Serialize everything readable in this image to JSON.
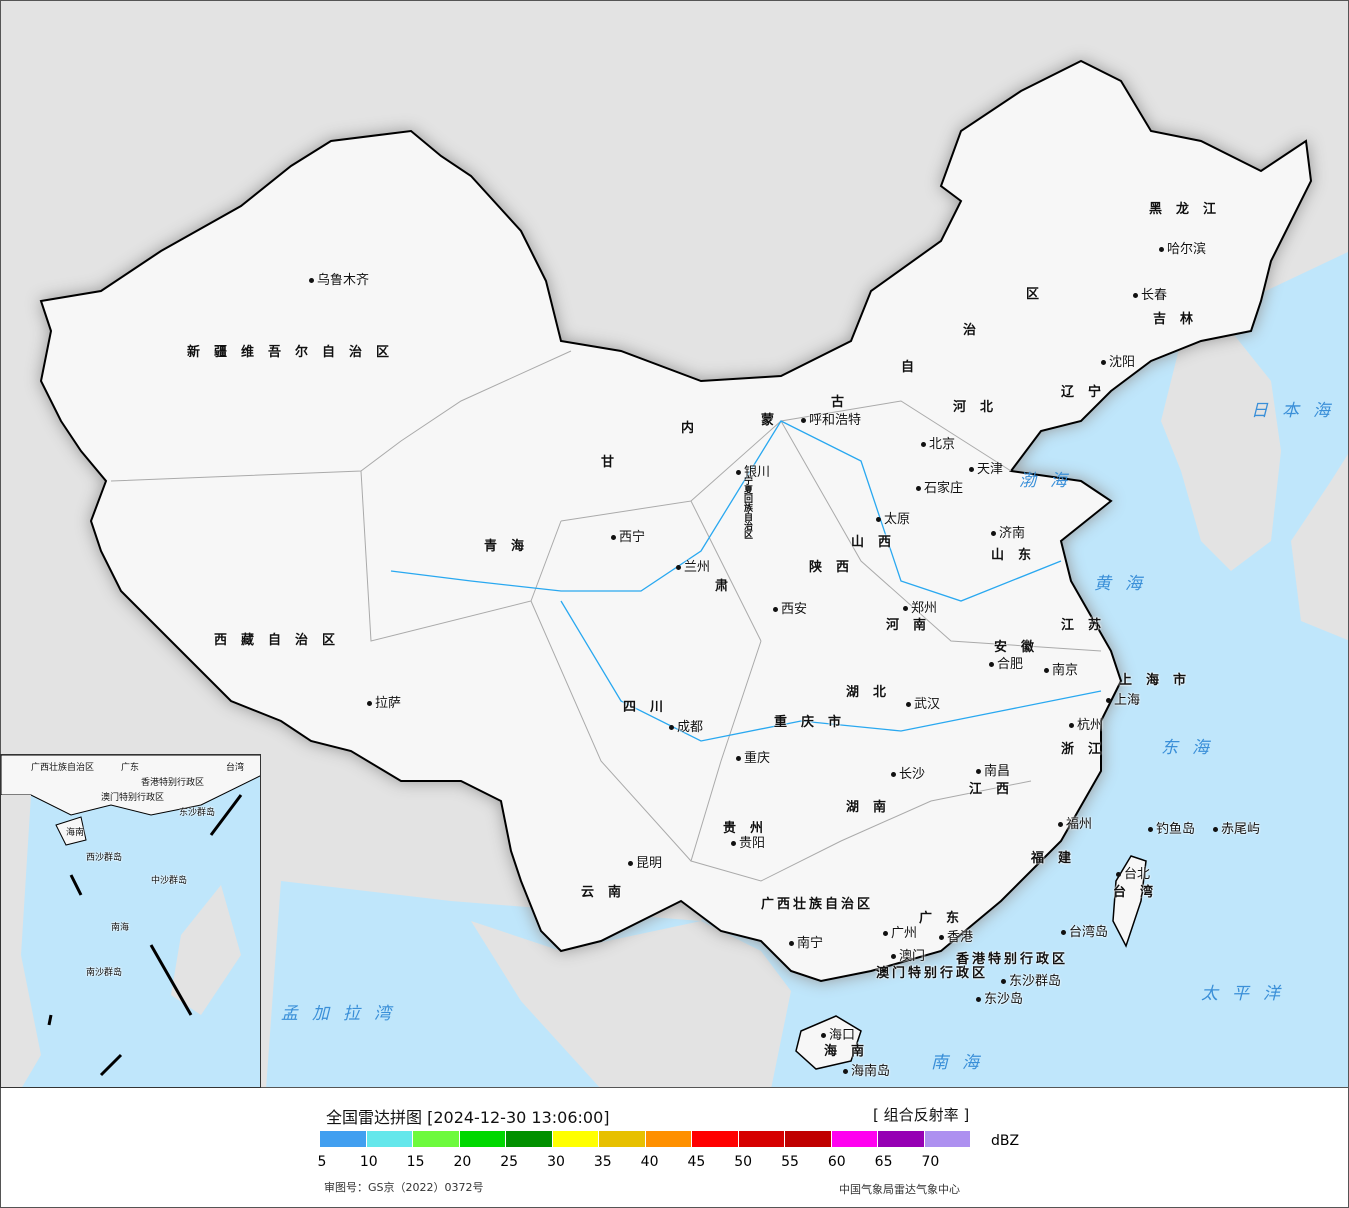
{
  "map": {
    "labels": [
      {
        "text": "乌鲁木齐",
        "type": "city"
      },
      {
        "text": "新疆维吾尔自治区",
        "type": "prov"
      },
      {
        "text": "西藏自治区",
        "type": "prov"
      },
      {
        "text": "拉萨",
        "type": "city"
      },
      {
        "text": "青海",
        "type": "prov"
      },
      {
        "text": "西宁",
        "type": "city"
      },
      {
        "text": "甘",
        "type": "prov"
      },
      {
        "text": "肃",
        "type": "prov"
      },
      {
        "text": "兰州",
        "type": "city"
      },
      {
        "text": "内",
        "type": "prov"
      },
      {
        "text": "蒙",
        "type": "prov"
      },
      {
        "text": "古",
        "type": "prov"
      },
      {
        "text": "自",
        "type": "prov"
      },
      {
        "text": "治",
        "type": "prov"
      },
      {
        "text": "区",
        "type": "prov"
      },
      {
        "text": "呼和浩特",
        "type": "city"
      },
      {
        "text": "银川",
        "type": "city"
      },
      {
        "text": "黑龙江",
        "type": "prov"
      },
      {
        "text": "哈尔滨",
        "type": "city"
      },
      {
        "text": "长春",
        "type": "city"
      },
      {
        "text": "吉林",
        "type": "prov"
      },
      {
        "text": "沈阳",
        "type": "city"
      },
      {
        "text": "辽宁",
        "type": "prov"
      },
      {
        "text": "北京",
        "type": "city"
      },
      {
        "text": "天津",
        "type": "city"
      },
      {
        "text": "河北",
        "type": "prov"
      },
      {
        "text": "石家庄",
        "type": "city"
      },
      {
        "text": "山西",
        "type": "prov"
      },
      {
        "text": "太原",
        "type": "city"
      },
      {
        "text": "济南",
        "type": "city"
      },
      {
        "text": "山东",
        "type": "prov"
      },
      {
        "text": "陕西",
        "type": "prov"
      },
      {
        "text": "西安",
        "type": "city"
      },
      {
        "text": "郑州",
        "type": "city"
      },
      {
        "text": "河南",
        "type": "prov"
      },
      {
        "text": "江苏",
        "type": "prov"
      },
      {
        "text": "安徽",
        "type": "prov"
      },
      {
        "text": "合肥",
        "type": "city"
      },
      {
        "text": "南京",
        "type": "city"
      },
      {
        "text": "上海市",
        "type": "prov"
      },
      {
        "text": "上海",
        "type": "city"
      },
      {
        "text": "四川",
        "type": "prov"
      },
      {
        "text": "成都",
        "type": "city"
      },
      {
        "text": "重庆市",
        "type": "prov"
      },
      {
        "text": "重庆",
        "type": "city"
      },
      {
        "text": "湖北",
        "type": "prov"
      },
      {
        "text": "武汉",
        "type": "city"
      },
      {
        "text": "杭州",
        "type": "city"
      },
      {
        "text": "浙江",
        "type": "prov"
      },
      {
        "text": "长沙",
        "type": "city"
      },
      {
        "text": "湖南",
        "type": "prov"
      },
      {
        "text": "南昌",
        "type": "city"
      },
      {
        "text": "江西",
        "type": "prov"
      },
      {
        "text": "贵州",
        "type": "prov"
      },
      {
        "text": "贵阳",
        "type": "city"
      },
      {
        "text": "昆明",
        "type": "city"
      },
      {
        "text": "云南",
        "type": "prov"
      },
      {
        "text": "福州",
        "type": "city"
      },
      {
        "text": "福建",
        "type": "prov"
      },
      {
        "text": "台北",
        "type": "city"
      },
      {
        "text": "台湾",
        "type": "prov"
      },
      {
        "text": "台湾岛",
        "type": "city"
      },
      {
        "text": "钓鱼岛",
        "type": "city"
      },
      {
        "text": "赤尾屿",
        "type": "city"
      },
      {
        "text": "广西壮族自治区",
        "type": "prov"
      },
      {
        "text": "南宁",
        "type": "city"
      },
      {
        "text": "广州",
        "type": "city"
      },
      {
        "text": "广东",
        "type": "prov"
      },
      {
        "text": "香港",
        "type": "city"
      },
      {
        "text": "澳门",
        "type": "city"
      },
      {
        "text": "香港特别行政区",
        "type": "prov"
      },
      {
        "text": "澳门特别行政区",
        "type": "prov"
      },
      {
        "text": "东沙群岛",
        "type": "city"
      },
      {
        "text": "东沙岛",
        "type": "city"
      },
      {
        "text": "海口",
        "type": "city"
      },
      {
        "text": "海南",
        "type": "prov"
      },
      {
        "text": "海南岛",
        "type": "city"
      },
      {
        "text": "渤海",
        "type": "sea"
      },
      {
        "text": "黄海",
        "type": "sea"
      },
      {
        "text": "东海",
        "type": "sea"
      },
      {
        "text": "日本海",
        "type": "sea"
      },
      {
        "text": "太平洋",
        "type": "sea"
      },
      {
        "text": "南海",
        "type": "sea"
      },
      {
        "text": "孟加拉湾",
        "type": "sea"
      },
      {
        "text": "宁夏回族自治区",
        "type": "prov"
      }
    ],
    "inset_labels": [
      "广西壮族自治区",
      "广东",
      "台湾",
      "香港特别行政区",
      "澳门特别行政区",
      "海南",
      "西沙群岛",
      "中沙群岛",
      "南海",
      "南沙群岛",
      "东沙群岛"
    ],
    "land_color": "#f7f7f7",
    "sea_color": "#bfe6fb",
    "outside_color": "#e3e3e3"
  },
  "legend": {
    "title": "全国雷达拼图 [2024-12-30 13:06:00]",
    "product": "[ 组合反射率 ]",
    "unit": "dBZ",
    "colors": [
      "#419ff0",
      "#64e7eb",
      "#6dfa3d",
      "#00d800",
      "#019000",
      "#ffff00",
      "#e7c000",
      "#ff9000",
      "#ff0000",
      "#d60000",
      "#c00000",
      "#ff00f0",
      "#9600b4",
      "#ad90f0"
    ],
    "ticks": [
      "5",
      "10",
      "15",
      "20",
      "25",
      "30",
      "35",
      "40",
      "45",
      "50",
      "55",
      "60",
      "65",
      "70"
    ],
    "review_number": "审图号：GS京（2022）0372号",
    "credit": "中国气象局雷达气象中心"
  }
}
